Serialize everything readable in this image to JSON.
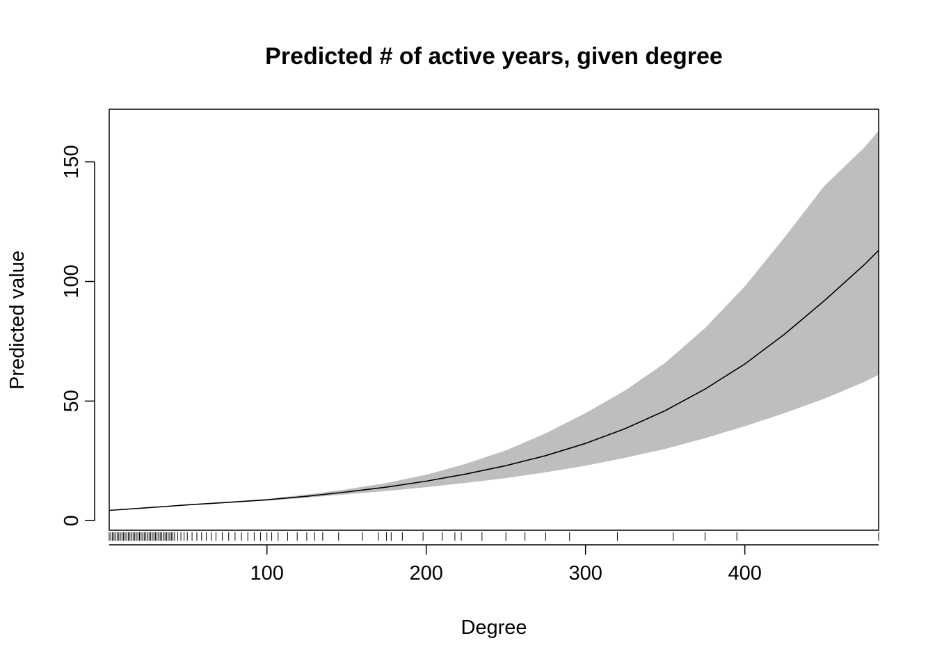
{
  "chart_data": {
    "type": "line",
    "title": "Predicted # of active years, given degree",
    "xlabel": "Degree",
    "ylabel": "Predicted value",
    "xlim": [
      1,
      484
    ],
    "ylim": [
      -4,
      172
    ],
    "x_ticks": [
      100,
      200,
      300,
      400
    ],
    "y_ticks": [
      0,
      50,
      100,
      150
    ],
    "grid": false,
    "legend": "none",
    "band_color": "#bebebe",
    "line_color": "#000000",
    "series": [
      {
        "x": [
          1,
          25,
          50,
          75,
          100,
          125,
          150,
          175,
          200,
          225,
          250,
          275,
          300,
          325,
          350,
          375,
          400,
          425,
          450,
          475,
          484
        ],
        "values": [
          4.3,
          5.4,
          6.6,
          7.6,
          8.7,
          10.2,
          12.0,
          14.0,
          16.5,
          19.5,
          23.0,
          27.2,
          32.3,
          38.5,
          46.0,
          55.0,
          65.5,
          78.0,
          92.0,
          107.0,
          113.0
        ],
        "lower": [
          4.3,
          5.3,
          6.4,
          7.4,
          8.4,
          9.6,
          11.0,
          12.4,
          14.0,
          15.8,
          17.8,
          20.2,
          23.0,
          26.3,
          30.0,
          34.5,
          39.5,
          45.0,
          51.0,
          58.0,
          61.0
        ],
        "upper": [
          4.3,
          5.5,
          6.8,
          7.9,
          9.1,
          10.9,
          13.1,
          15.7,
          19.2,
          23.8,
          29.4,
          36.5,
          45.0,
          54.5,
          66.0,
          80.5,
          98.0,
          118.5,
          140.0,
          156.0,
          163.0
        ]
      }
    ],
    "rug": [
      1,
      2,
      3,
      4,
      5,
      6,
      7,
      8,
      9,
      10,
      11,
      12,
      13,
      14,
      15,
      16,
      17,
      18,
      19,
      20,
      21,
      22,
      23,
      24,
      25,
      26,
      27,
      28,
      29,
      30,
      31,
      32,
      33,
      34,
      35,
      36,
      37,
      38,
      39,
      40,
      41,
      42,
      44,
      46,
      48,
      50,
      53,
      56,
      59,
      62,
      65,
      68,
      72,
      76,
      80,
      84,
      88,
      92,
      96,
      100,
      103,
      107,
      113,
      119,
      125,
      130,
      135,
      145,
      160,
      170,
      175,
      178,
      185,
      198,
      210,
      218,
      222,
      235,
      250,
      262,
      275,
      290,
      320,
      355,
      375,
      395,
      485
    ]
  }
}
